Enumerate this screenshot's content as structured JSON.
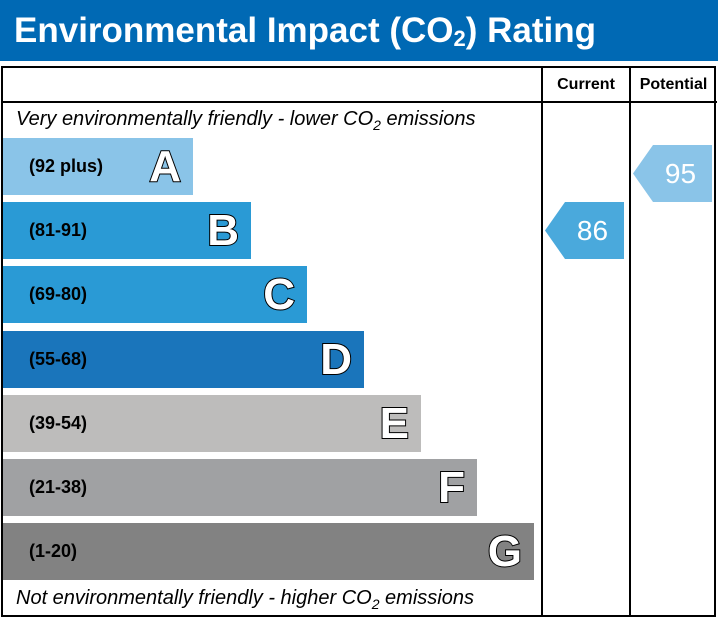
{
  "title_pre": "Environmental Impact (CO",
  "title_sub": "2",
  "title_post": ") Rating",
  "columns": {
    "current": "Current",
    "potential": "Potential"
  },
  "top_caption": {
    "pre": "Very environmentally friendly - lower CO",
    "sub": "2",
    "post": " emissions"
  },
  "bottom_caption": {
    "pre": "Not environmentally friendly - higher CO",
    "sub": "2",
    "post": " emissions"
  },
  "chart_data": {
    "type": "bar",
    "bands": [
      {
        "letter": "A",
        "range": "(92 plus)",
        "color": "#8ac4e8"
      },
      {
        "letter": "B",
        "range": "(81-91)",
        "color": "#2a9ad5"
      },
      {
        "letter": "C",
        "range": "(69-80)",
        "color": "#2a9ad5"
      },
      {
        "letter": "D",
        "range": "(55-68)",
        "color": "#1a75bb"
      },
      {
        "letter": "E",
        "range": "(39-54)",
        "color": "#bdbcbb"
      },
      {
        "letter": "F",
        "range": "(21-38)",
        "color": "#a0a1a3"
      },
      {
        "letter": "G",
        "range": "(1-20)",
        "color": "#828282"
      }
    ],
    "current": {
      "value": "86",
      "band": "B",
      "color": "#4aa9dc"
    },
    "potential": {
      "value": "95",
      "band": "A",
      "color": "#8ac4e8"
    }
  }
}
